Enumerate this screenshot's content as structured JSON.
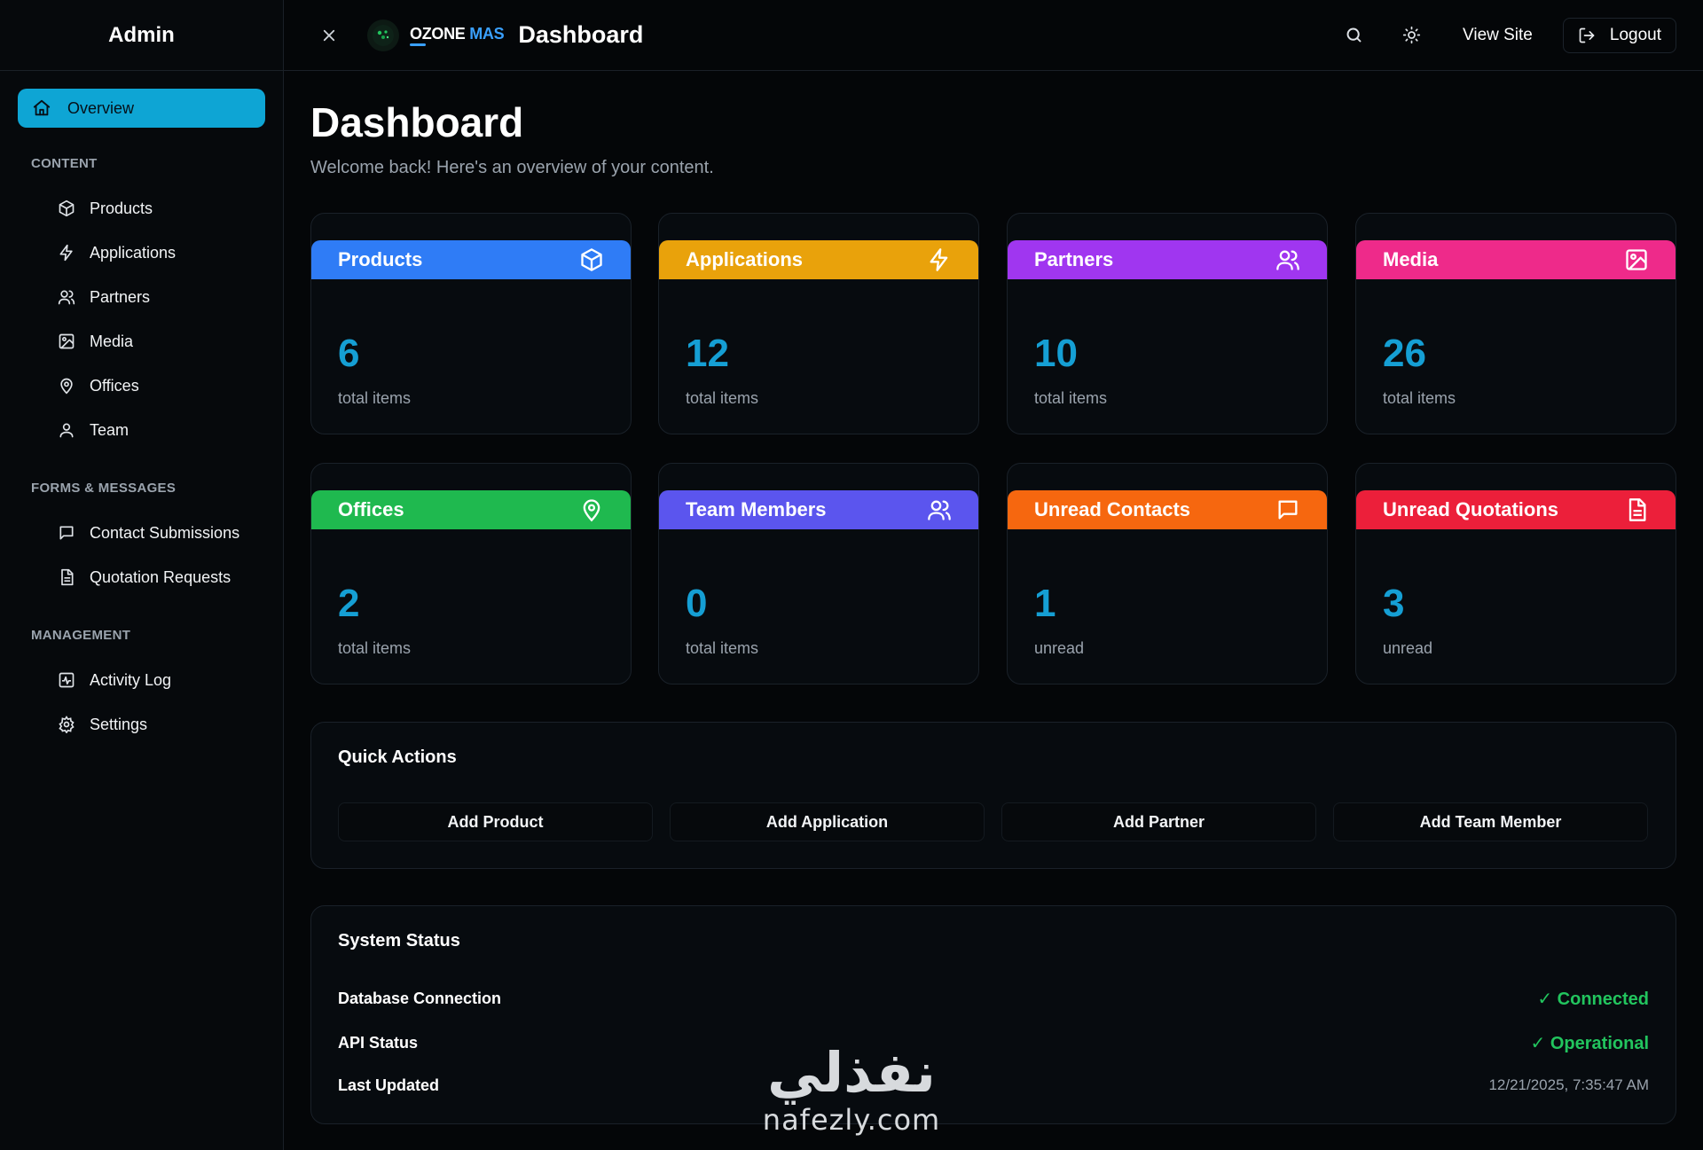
{
  "sidebar": {
    "title": "Admin",
    "active": {
      "label": "Overview",
      "icon": "home-icon"
    },
    "sections": [
      {
        "label": "CONTENT",
        "items": [
          {
            "label": "Products",
            "icon": "cube-icon"
          },
          {
            "label": "Applications",
            "icon": "lightning-icon"
          },
          {
            "label": "Partners",
            "icon": "users-icon"
          },
          {
            "label": "Media",
            "icon": "image-icon"
          },
          {
            "label": "Offices",
            "icon": "map-pin-icon"
          },
          {
            "label": "Team",
            "icon": "user-icon"
          }
        ]
      },
      {
        "label": "FORMS & MESSAGES",
        "items": [
          {
            "label": "Contact Submissions",
            "icon": "chat-icon"
          },
          {
            "label": "Quotation Requests",
            "icon": "document-icon"
          }
        ]
      },
      {
        "label": "MANAGEMENT",
        "items": [
          {
            "label": "Activity Log",
            "icon": "activity-icon"
          },
          {
            "label": "Settings",
            "icon": "gear-icon"
          }
        ]
      }
    ]
  },
  "topbar": {
    "logo_part1": "OZONE",
    "logo_part2": "MAS",
    "title": "Dashboard",
    "view_site": "View Site",
    "logout": "Logout"
  },
  "main": {
    "title": "Dashboard",
    "subtitle": "Welcome back! Here's an overview of your content."
  },
  "cards": [
    {
      "label": "Products",
      "value": "6",
      "sub": "total items",
      "color": "#2f7cf6",
      "icon": "cube-icon"
    },
    {
      "label": "Applications",
      "value": "12",
      "sub": "total items",
      "color": "#e9a20b",
      "icon": "lightning-icon"
    },
    {
      "label": "Partners",
      "value": "10",
      "sub": "total items",
      "color": "#a036f0",
      "icon": "users-icon"
    },
    {
      "label": "Media",
      "value": "26",
      "sub": "total items",
      "color": "#ee2a8a",
      "icon": "image-icon"
    },
    {
      "label": "Offices",
      "value": "2",
      "sub": "total items",
      "color": "#1fb94f",
      "icon": "map-pin-icon"
    },
    {
      "label": "Team Members",
      "value": "0",
      "sub": "total items",
      "color": "#5b55ee",
      "icon": "users-icon"
    },
    {
      "label": "Unread Contacts",
      "value": "1",
      "sub": "unread",
      "color": "#f6670f",
      "icon": "chat-icon"
    },
    {
      "label": "Unread Quotations",
      "value": "3",
      "sub": "unread",
      "color": "#ec1f3a",
      "icon": "document-icon"
    }
  ],
  "quick_actions": {
    "title": "Quick Actions",
    "buttons": [
      "Add Product",
      "Add Application",
      "Add Partner",
      "Add Team Member"
    ]
  },
  "system_status": {
    "title": "System Status",
    "rows": [
      {
        "label": "Database Connection",
        "value": "✓ Connected"
      },
      {
        "label": "API Status",
        "value": "✓ Operational"
      },
      {
        "label": "Last Updated",
        "value": "12/21/2025, 7:35:47 AM"
      }
    ]
  },
  "watermark": {
    "arabic": "نفذلي",
    "latin": "nafezly.com"
  }
}
